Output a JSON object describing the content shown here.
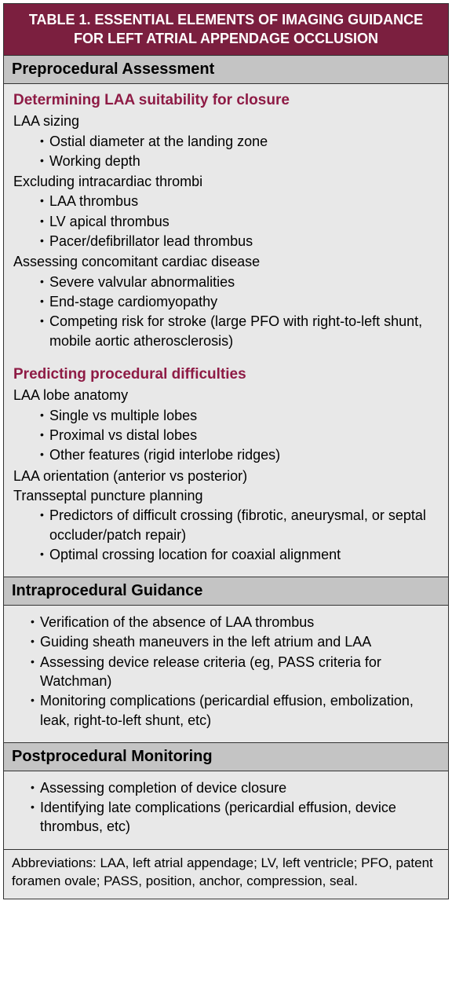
{
  "title": "TABLE 1.  ESSENTIAL ELEMENTS OF IMAGING GUIDANCE FOR LEFT ATRIAL APPENDAGE OCCLUSION",
  "sections": {
    "preprocedural": {
      "header": "Preprocedural Assessment",
      "group1": {
        "heading": "Determining LAA suitability for closure",
        "item1": "LAA sizing",
        "item1_bullets": [
          "Ostial diameter at the landing zone",
          "Working depth"
        ],
        "item2": "Excluding intracardiac thrombi",
        "item2_bullets": [
          "LAA thrombus",
          "LV apical thrombus",
          "Pacer/defibrillator lead thrombus"
        ],
        "item3": "Assessing concomitant cardiac disease",
        "item3_bullets": [
          "Severe valvular abnormalities",
          "End-stage cardiomyopathy",
          "Competing risk for stroke (large PFO with right-to-left shunt, mobile aortic atherosclerosis)"
        ]
      },
      "group2": {
        "heading": "Predicting procedural difficulties",
        "item1": "LAA lobe anatomy",
        "item1_bullets": [
          "Single vs multiple lobes",
          "Proximal vs distal lobes",
          "Other features (rigid interlobe ridges)"
        ],
        "item2": "LAA orientation (anterior vs posterior)",
        "item3": "Transseptal puncture planning",
        "item3_bullets": [
          "Predictors of difficult crossing (fibrotic, aneurysmal, or septal occluder/patch repair)",
          "Optimal crossing location for coaxial alignment"
        ]
      }
    },
    "intraprocedural": {
      "header": "Intraprocedural Guidance",
      "bullets": [
        "Verification of the absence of LAA thrombus",
        "Guiding sheath maneuvers in the left atrium and LAA",
        "Assessing device release criteria (eg, PASS criteria for Watchman)",
        "Monitoring complications (pericardial effusion, embolization, leak, right-to-left shunt, etc)"
      ]
    },
    "postprocedural": {
      "header": "Postprocedural Monitoring",
      "bullets": [
        "Assessing completion of device closure",
        "Identifying late complications (pericardial effusion, device thrombus, etc)"
      ]
    }
  },
  "footer": "Abbreviations: LAA, left atrial appendage; LV, left ventricle; PFO, patent foramen ovale; PASS, position, anchor, compression, seal."
}
